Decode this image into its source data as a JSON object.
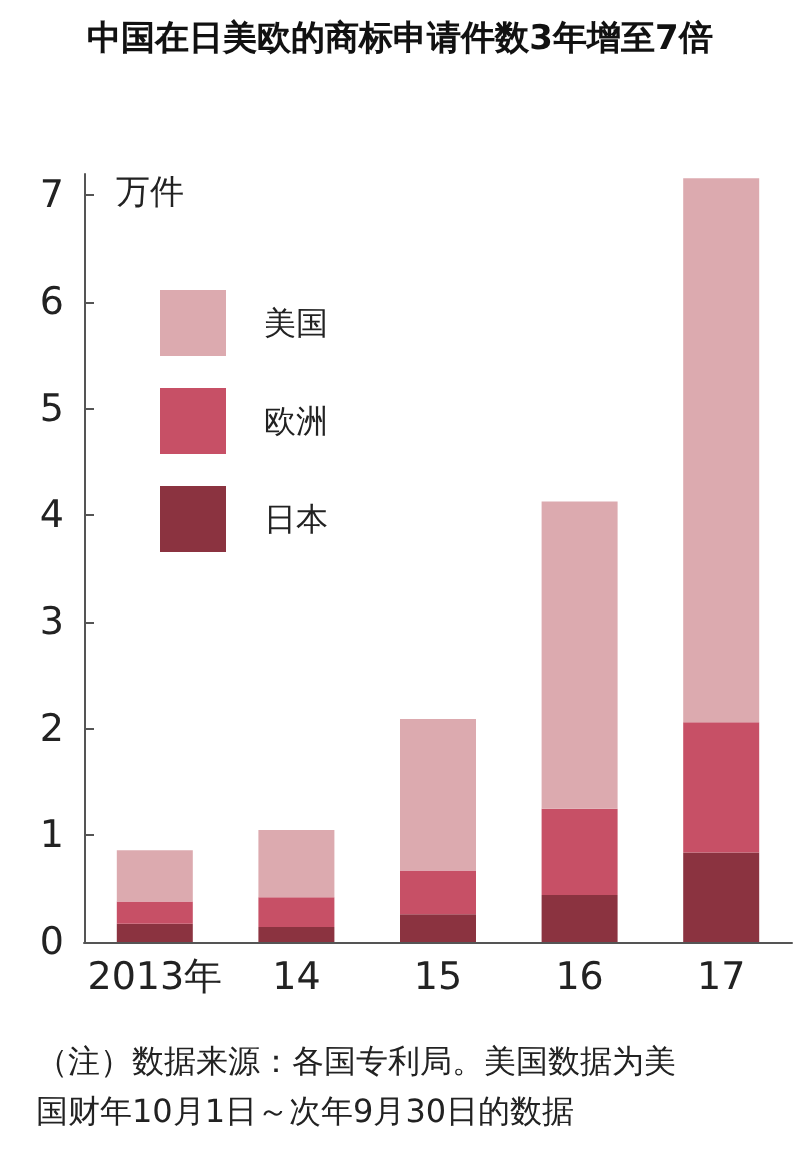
{
  "chart_data": {
    "type": "bar",
    "title": "中国在日美欧的商标申请件数3年增至7倍",
    "ylabel": "万件",
    "categories": [
      "2013年",
      "14",
      "15",
      "16",
      "17"
    ],
    "stacked": true,
    "series": [
      {
        "name": "日本",
        "color": "#8b3340",
        "values": [
          0.17,
          0.14,
          0.26,
          0.44,
          0.84
        ]
      },
      {
        "name": "欧洲",
        "color": "#c75066",
        "values": [
          0.21,
          0.28,
          0.41,
          0.81,
          1.22
        ]
      },
      {
        "name": "美国",
        "color": "#dcaaaf",
        "values": [
          0.48,
          0.63,
          1.42,
          2.88,
          5.1
        ]
      }
    ],
    "ylim": [
      0,
      7.2
    ],
    "yticks": [
      0,
      1,
      2,
      3,
      4,
      5,
      6,
      7
    ],
    "grid": false,
    "legend": "top left",
    "annotations": [
      "（注）数据来源：各国专利局。美国数据为美国财年10月1日～次年9月30日的数据"
    ]
  }
}
